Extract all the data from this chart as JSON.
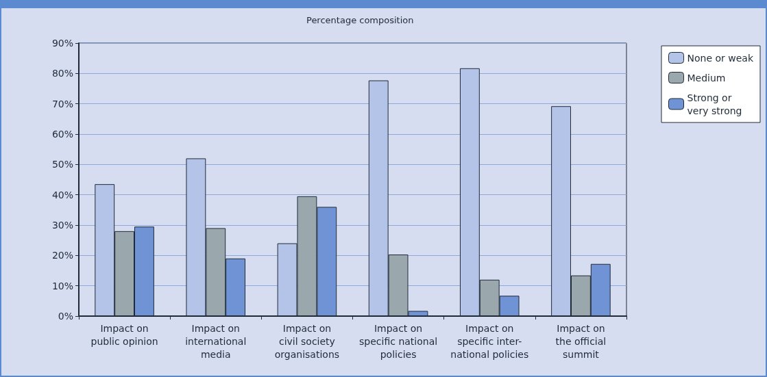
{
  "chart_data": {
    "type": "bar",
    "title": "Percentage composition",
    "categories": [
      "Impact on\npublic opinion",
      "Impact on\ninternational\nmedia",
      "Impact on\ncivil society\norganisations",
      "Impact on\nspecific national\npolicies",
      "Impact on\nspecific inter-\nnational policies",
      "Impact on\nthe official\nsummit"
    ],
    "series": [
      {
        "name": "None or weak",
        "color": "#b4c4e8",
        "values": [
          43.5,
          52,
          24,
          77.7,
          81.7,
          69.2
        ]
      },
      {
        "name": "Medium",
        "color": "#9aa8ad",
        "values": [
          28,
          29,
          39.5,
          20.3,
          12,
          13.4
        ]
      },
      {
        "name": "Strong or\nvery strong",
        "color": "#6f93d4",
        "values": [
          29.5,
          19,
          36,
          1.7,
          6.7,
          17.2
        ]
      }
    ],
    "ylim": [
      0,
      90
    ],
    "yticks": [
      {
        "value": 0,
        "label": "0%"
      },
      {
        "value": 10,
        "label": "10%"
      },
      {
        "value": 20,
        "label": "20%"
      },
      {
        "value": 30,
        "label": "30%"
      },
      {
        "value": 40,
        "label": "40%"
      },
      {
        "value": 50,
        "label": "50%"
      },
      {
        "value": 60,
        "label": "60%"
      },
      {
        "value": 70,
        "label": "70%"
      },
      {
        "value": 80,
        "label": "80%"
      },
      {
        "value": 90,
        "label": "90%"
      }
    ],
    "grid": "y",
    "legend": "top right"
  }
}
